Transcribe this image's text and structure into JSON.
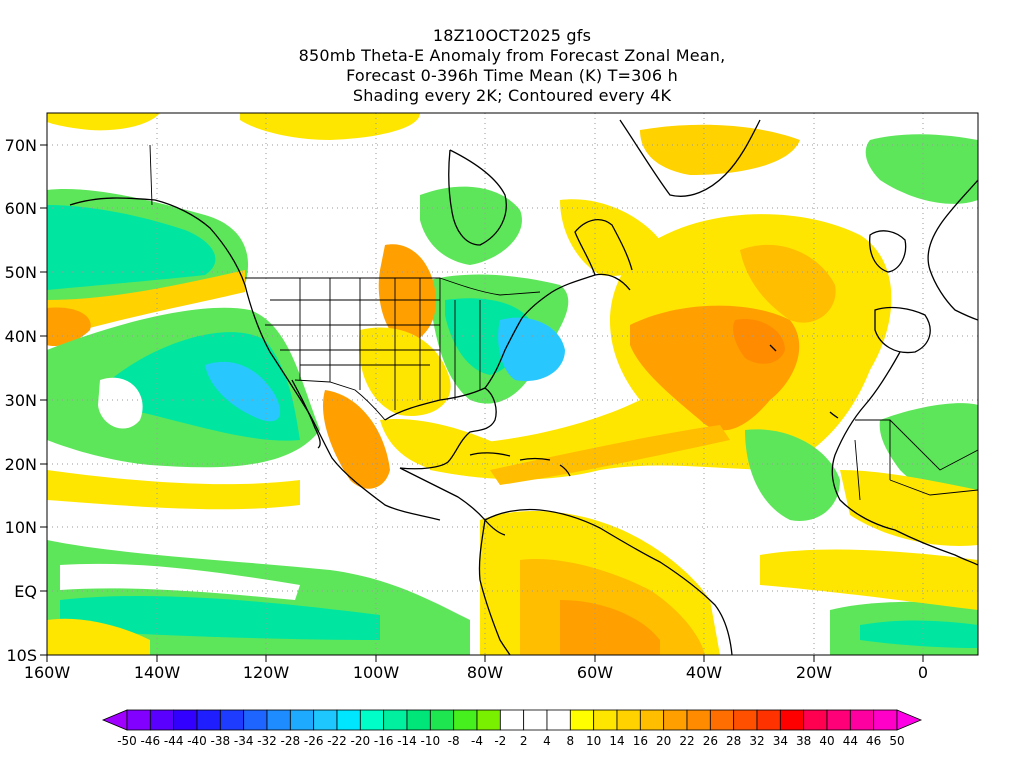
{
  "title_lines": [
    "18Z10OCT2025 gfs",
    "850mb Theta-E Anomaly from Forecast Zonal Mean,",
    "Forecast 0-396h Time Mean (K) T=306 h",
    "Shading every 2K; Contoured every 4K"
  ],
  "map": {
    "lon_range": [
      -160,
      10
    ],
    "lat_range": [
      -10,
      75
    ],
    "lon_ticks": [
      "160W",
      "140W",
      "120W",
      "100W",
      "80W",
      "60W",
      "40W",
      "20W",
      "0"
    ],
    "lon_tick_values": [
      -160,
      -140,
      -120,
      -100,
      -80,
      -60,
      -40,
      -20,
      0
    ],
    "lat_ticks": [
      "10S",
      "EQ",
      "10N",
      "20N",
      "30N",
      "40N",
      "50N",
      "60N",
      "70N"
    ],
    "lat_tick_values": [
      -10,
      0,
      10,
      20,
      30,
      40,
      50,
      60,
      70
    ],
    "grid": "dotted"
  },
  "colorbar": {
    "labels": [
      "-50",
      "-46",
      "-44",
      "-40",
      "-38",
      "-34",
      "-32",
      "-28",
      "-26",
      "-22",
      "-20",
      "-16",
      "-14",
      "-10",
      "-8",
      "-4",
      "-2",
      "2",
      "4",
      "8",
      "10",
      "14",
      "16",
      "20",
      "22",
      "26",
      "28",
      "32",
      "34",
      "38",
      "40",
      "44",
      "46",
      "50"
    ],
    "colors": [
      "#a000ff",
      "#8200ff",
      "#5a00ff",
      "#3200ff",
      "#1e1eff",
      "#1e3cff",
      "#1e64ff",
      "#1e8cff",
      "#1eaaff",
      "#1ec8ff",
      "#00e6ff",
      "#00ffc8",
      "#00f0a0",
      "#00e678",
      "#1ee650",
      "#46f01e",
      "#78f000",
      "#ffffff",
      "#ffffff",
      "#ffffff",
      "#ffff00",
      "#ffe600",
      "#ffd200",
      "#ffbe00",
      "#ffa000",
      "#ff8c00",
      "#ff6e00",
      "#ff5000",
      "#ff3200",
      "#ff0000",
      "#ff0050",
      "#ff0078",
      "#ff00a0",
      "#ff00c8",
      "#ff00e6"
    ]
  },
  "fields": {
    "colors": {
      "white": "#ffffff",
      "yellow": "#ffe600",
      "gold": "#ffd200",
      "orange": "#ffa000",
      "dark_orange": "#f08c00",
      "green": "#5ee65a",
      "light_green": "#78f000",
      "teal": "#00e6a0",
      "cyan": "#00dcdc",
      "blue_cyan": "#28c8ff"
    }
  }
}
